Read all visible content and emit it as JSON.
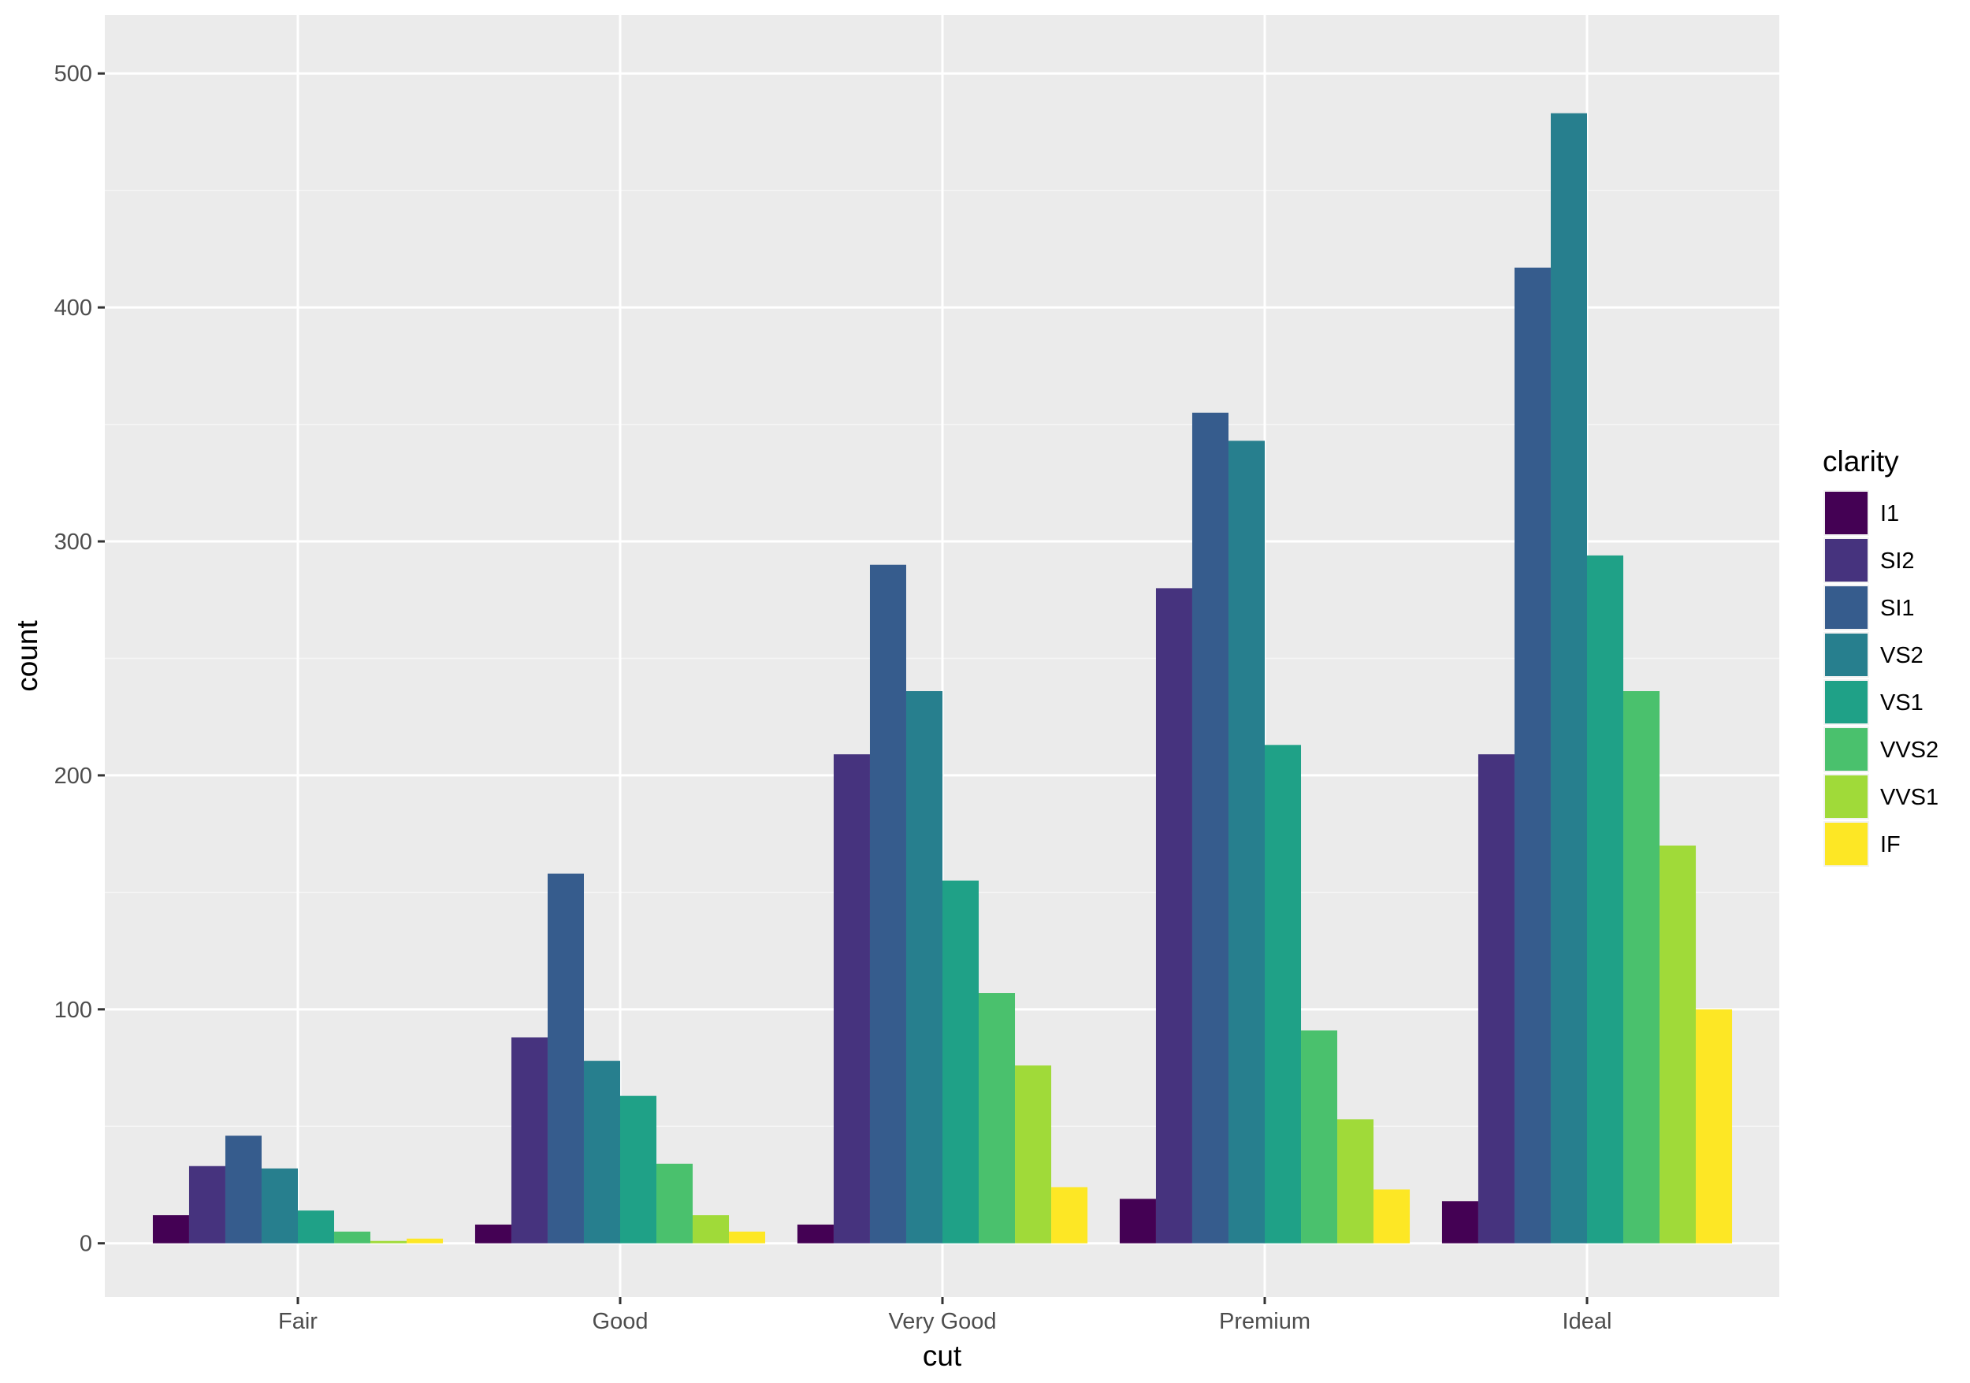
{
  "chart_data": {
    "type": "bar",
    "title": "",
    "xlabel": "cut",
    "ylabel": "count",
    "categories": [
      "Fair",
      "Good",
      "Very Good",
      "Premium",
      "Ideal"
    ],
    "yticks": [
      0,
      100,
      200,
      300,
      400,
      500
    ],
    "ylim": [
      -23,
      525
    ],
    "grid": true,
    "legend": {
      "title": "clarity",
      "position": "right"
    },
    "series": [
      {
        "name": "I1",
        "color": "#440154",
        "values": [
          12,
          8,
          8,
          19,
          18
        ]
      },
      {
        "name": "SI2",
        "color": "#46337E",
        "values": [
          33,
          88,
          209,
          280,
          209
        ]
      },
      {
        "name": "SI1",
        "color": "#365C8D",
        "values": [
          46,
          158,
          290,
          355,
          417
        ]
      },
      {
        "name": "VS2",
        "color": "#277F8E",
        "values": [
          32,
          78,
          236,
          343,
          483
        ]
      },
      {
        "name": "VS1",
        "color": "#1FA187",
        "values": [
          14,
          63,
          155,
          213,
          294
        ]
      },
      {
        "name": "VVS2",
        "color": "#4AC16D",
        "values": [
          5,
          34,
          107,
          91,
          236
        ]
      },
      {
        "name": "VVS1",
        "color": "#A0DA39",
        "values": [
          1,
          12,
          76,
          53,
          170
        ]
      },
      {
        "name": "IF",
        "color": "#FDE725",
        "values": [
          2,
          5,
          24,
          23,
          100
        ]
      }
    ]
  },
  "colors": {
    "panel_background": "#EBEBEB",
    "major_grid": "#FFFFFF",
    "minor_grid": "#F5F5F5",
    "tick_text": "#4D4D4D"
  }
}
